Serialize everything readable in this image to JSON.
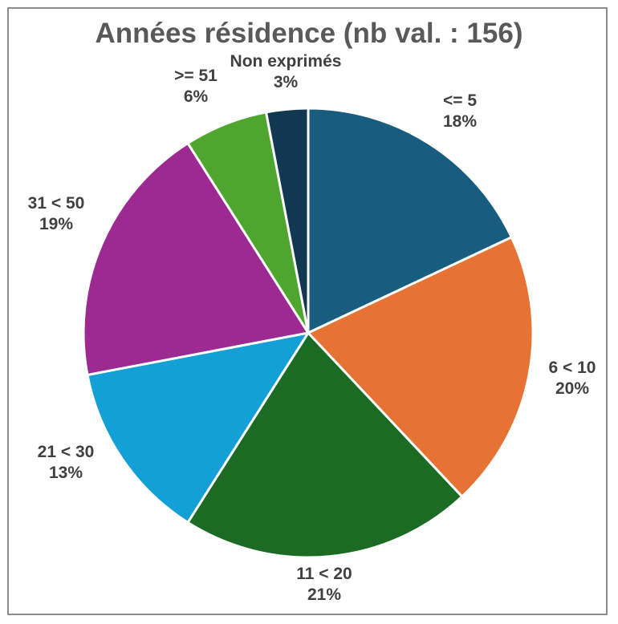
{
  "chart_data": {
    "type": "pie",
    "title": "Années résidence (nb val. : 156)",
    "start": "top, clockwise",
    "slices": [
      {
        "label": "<= 5",
        "value": 18,
        "pct": "18%",
        "color": "#185c80"
      },
      {
        "label": "6 < 10",
        "value": 20,
        "pct": "20%",
        "color": "#e67233"
      },
      {
        "label": "11 < 20",
        "value": 21,
        "pct": "21%",
        "color": "#1b6b25"
      },
      {
        "label": "21 < 30",
        "value": 13,
        "pct": "13%",
        "color": "#14a0d6"
      },
      {
        "label": "31 < 50",
        "value": 19,
        "pct": "19%",
        "color": "#9c2a90"
      },
      {
        "label": ">= 51",
        "value": 6,
        "pct": "6%",
        "color": "#4ea62f"
      },
      {
        "label": "Non exprimés",
        "value": 3,
        "pct": "3%",
        "color": "#113850"
      }
    ]
  }
}
